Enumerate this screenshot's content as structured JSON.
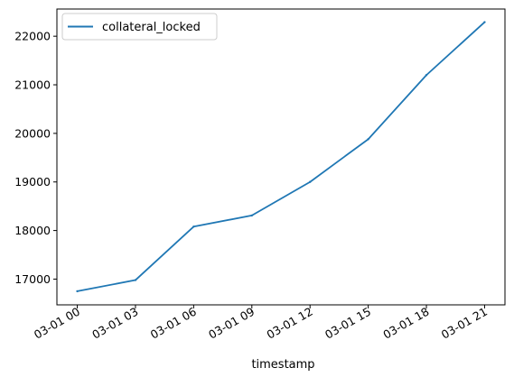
{
  "chart_data": {
    "type": "line",
    "title": "",
    "xlabel": "timestamp",
    "ylabel": "",
    "x_ticks": [
      "03-01 00",
      "03-01 03",
      "03-01 06",
      "03-01 09",
      "03-01 12",
      "03-01 15",
      "03-01 18",
      "03-01 21"
    ],
    "x_hours": [
      0,
      3,
      6,
      9,
      12,
      15,
      18,
      21
    ],
    "x_range_hours": [
      -1.05,
      22.05
    ],
    "y_ticks": [
      17000,
      18000,
      19000,
      20000,
      21000,
      22000
    ],
    "ylim": [
      16470,
      22560
    ],
    "series": [
      {
        "name": "collateral_locked",
        "color": "#1f77b4",
        "x": [
          "03-01 00",
          "03-01 03",
          "03-01 06",
          "03-01 09",
          "03-01 12",
          "03-01 15",
          "03-01 18",
          "03-01 21"
        ],
        "values": [
          16750,
          16980,
          18080,
          18310,
          19000,
          19880,
          21200,
          22290
        ]
      }
    ],
    "legend": {
      "position": "top-left"
    },
    "grid": false
  }
}
